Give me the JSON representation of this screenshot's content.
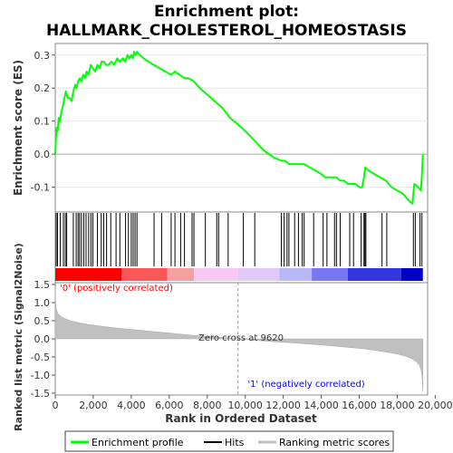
{
  "chart_data": {
    "type": "line",
    "title_line1": "Enrichment plot:",
    "title_line2": "HALLMARK_CHOLESTEROL_HOMEOSTASIS",
    "es_panel": {
      "ylabel": "Enrichment score (ES)",
      "ylim": [
        -0.175,
        0.335
      ],
      "yticks": [
        0.3,
        0.2,
        0.1,
        0.0,
        -0.1
      ],
      "ytick_labels": [
        "0.3",
        "0.2",
        "0.1",
        "0.0",
        "-0.1"
      ],
      "series": [
        {
          "name": "Enrichment profile",
          "color": "#00ff00",
          "x": [
            0,
            40,
            80,
            130,
            180,
            250,
            330,
            420,
            480,
            560,
            650,
            760,
            860,
            950,
            1050,
            1120,
            1200,
            1290,
            1380,
            1470,
            1560,
            1650,
            1750,
            1870,
            1990,
            2100,
            2220,
            2330,
            2440,
            2560,
            2680,
            2800,
            2950,
            3100,
            3260,
            3400,
            3560,
            3680,
            3800,
            3900,
            4000,
            4080,
            4150,
            4220,
            4300,
            4450,
            4650,
            4900,
            5200,
            5500,
            5800,
            6100,
            6300,
            6550,
            6800,
            7000,
            7300,
            7600,
            8000,
            8400,
            8800,
            9200,
            9620,
            10000,
            10500,
            11000,
            11500,
            11900,
            12100,
            12300,
            12500,
            12700,
            12900,
            13100,
            13400,
            13700,
            14000,
            14200,
            14400,
            14600,
            14800,
            15000,
            15200,
            15400,
            15600,
            15800,
            16000,
            16150,
            16250,
            16320,
            16500,
            16800,
            17100,
            17400,
            17700,
            18000,
            18300,
            18600,
            18800,
            18900,
            19100,
            19250,
            19300,
            19350
          ],
          "y": [
            0.0,
            0.05,
            0.08,
            0.07,
            0.11,
            0.1,
            0.13,
            0.15,
            0.17,
            0.19,
            0.17,
            0.17,
            0.16,
            0.19,
            0.21,
            0.2,
            0.22,
            0.23,
            0.22,
            0.24,
            0.23,
            0.25,
            0.24,
            0.27,
            0.26,
            0.25,
            0.27,
            0.26,
            0.28,
            0.28,
            0.27,
            0.27,
            0.28,
            0.27,
            0.29,
            0.28,
            0.29,
            0.28,
            0.3,
            0.29,
            0.3,
            0.29,
            0.31,
            0.3,
            0.31,
            0.3,
            0.29,
            0.28,
            0.27,
            0.26,
            0.25,
            0.24,
            0.25,
            0.24,
            0.23,
            0.23,
            0.22,
            0.2,
            0.18,
            0.16,
            0.14,
            0.11,
            0.09,
            0.07,
            0.04,
            0.01,
            -0.01,
            -0.02,
            -0.02,
            -0.03,
            -0.03,
            -0.03,
            -0.03,
            -0.03,
            -0.04,
            -0.05,
            -0.06,
            -0.07,
            -0.07,
            -0.07,
            -0.07,
            -0.08,
            -0.08,
            -0.09,
            -0.09,
            -0.09,
            -0.1,
            -0.1,
            -0.07,
            -0.04,
            -0.05,
            -0.06,
            -0.07,
            -0.08,
            -0.1,
            -0.11,
            -0.12,
            -0.14,
            -0.15,
            -0.09,
            -0.1,
            -0.11,
            -0.06,
            0.0
          ]
        }
      ]
    },
    "hits_panel": {
      "series_name": "Hits",
      "positions": [
        50,
        120,
        260,
        430,
        530,
        600,
        950,
        1100,
        1200,
        1280,
        1380,
        1500,
        1620,
        1760,
        1880,
        1980,
        2220,
        2420,
        2550,
        2700,
        2920,
        3200,
        3400,
        3700,
        3850,
        4000,
        4100,
        4200,
        4300,
        5200,
        5600,
        6100,
        6300,
        6600,
        6800,
        7200,
        7300,
        7900,
        8500,
        8600,
        9100,
        9900,
        10500,
        11900,
        12050,
        12200,
        12300,
        12600,
        12800,
        13000,
        13100,
        13600,
        14100,
        14300,
        14700,
        14800,
        15000,
        15500,
        15700,
        16100,
        16250,
        16300,
        16350,
        17200,
        17450,
        18850,
        18950,
        19200,
        19300
      ]
    },
    "colorbar": {
      "colors": [
        "#ff0000",
        "#fa5858",
        "#f4a0a0",
        "#f8c8f0",
        "#e0c8f8",
        "#b8b8f8",
        "#7878f0",
        "#3434e0",
        "#0000c8"
      ],
      "boundaries": [
        0,
        3500,
        5900,
        7300,
        9620,
        11800,
        13500,
        15400,
        18200,
        19350
      ]
    },
    "metric_panel": {
      "ylabel": "Ranked list metric (Signal2Noise)",
      "ylim": [
        -1.55,
        1.55
      ],
      "yticks": [
        1.5,
        1.0,
        0.5,
        0.0,
        -0.5,
        -1.0,
        -1.5
      ],
      "ytick_labels": [
        "1.5",
        "1.0",
        "0.5",
        "0.0",
        "-0.5",
        "-1.0",
        "-1.5"
      ],
      "series_name": "Ranking metric scores",
      "x": [
        0,
        20,
        60,
        150,
        300,
        500,
        800,
        1200,
        1700,
        2400,
        3200,
        4200,
        5200,
        6200,
        7200,
        8200,
        9000,
        9620,
        10500,
        11500,
        12500,
        13500,
        14500,
        15500,
        16300,
        17000,
        17600,
        18100,
        18500,
        18800,
        19000,
        19150,
        19250,
        19300,
        19350
      ],
      "y": [
        1.4,
        0.95,
        0.8,
        0.7,
        0.62,
        0.56,
        0.5,
        0.45,
        0.4,
        0.35,
        0.3,
        0.25,
        0.2,
        0.15,
        0.1,
        0.06,
        0.03,
        0.0,
        -0.04,
        -0.08,
        -0.11,
        -0.15,
        -0.19,
        -0.24,
        -0.28,
        -0.33,
        -0.38,
        -0.43,
        -0.49,
        -0.56,
        -0.63,
        -0.72,
        -0.85,
        -1.0,
        -1.45
      ],
      "zero_cross_label": "Zero cross at 9620",
      "zero_cross_x": 9620,
      "pos_label": "'0' (positively correlated)",
      "neg_label": "'1' (negatively correlated)",
      "pos_color": "#ff0000",
      "neg_color": "#0000ff"
    },
    "xaxis": {
      "label": "Rank in Ordered Dataset",
      "xlim": [
        0,
        19600
      ],
      "xticks": [
        0,
        2000,
        4000,
        6000,
        8000,
        10000,
        12000,
        14000,
        16000,
        18000,
        20000
      ],
      "xtick_labels": [
        "0",
        "2,000",
        "4,000",
        "6,000",
        "8,000",
        "10,000",
        "12,000",
        "14,000",
        "16,000",
        "18,000",
        "20,000"
      ]
    },
    "legend": {
      "position": "bottom",
      "items": [
        {
          "label": "Enrichment profile",
          "color": "#00ff00"
        },
        {
          "label": "Hits",
          "color": "#000000"
        },
        {
          "label": "Ranking metric scores",
          "color": "#c0c0c0"
        }
      ]
    }
  }
}
